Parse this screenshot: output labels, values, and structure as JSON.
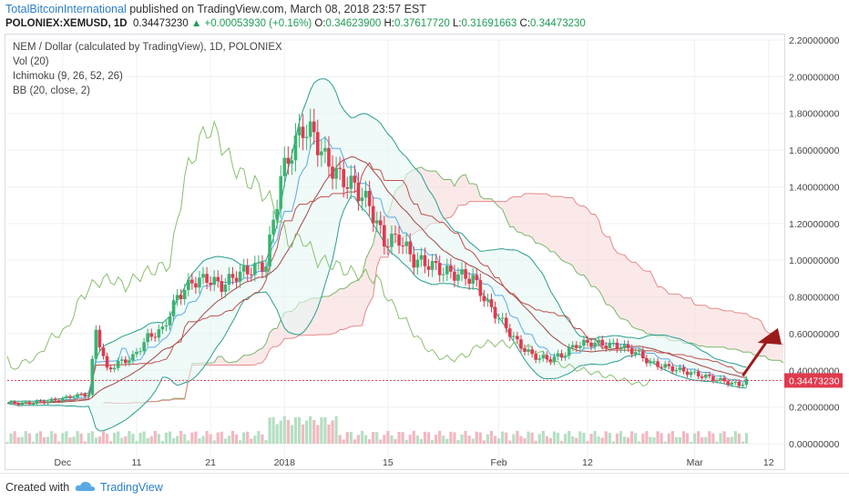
{
  "header": {
    "publisher": "TotalBitcoinInternational",
    "published_text": "published on TradingView.com, March 08, 2018 23:57 EST",
    "symbol": "POLONIEX:XEMUSD, 1D",
    "last": "0.34473230",
    "change": "+0.00053930 (+0.16%)",
    "o_label": "O:",
    "o": "0.34623900",
    "h_label": "H:",
    "h": "0.37617720",
    "l_label": "L:",
    "l": "0.31691663",
    "c_label": "C:",
    "c": "0.34473230"
  },
  "legend": {
    "line1": "NEM / Dollar (calculated by TradingView), 1D, POLONIEX",
    "line2": "Vol (20)",
    "line3": "Ichimoku (9, 26, 52, 26)",
    "line4": "BB (20, close, 2)"
  },
  "footer": {
    "created_with": "Created with",
    "brand": "TradingView"
  },
  "price_tag": "0.34473230",
  "colors": {
    "up": "#3cb371",
    "down": "#e03a4e",
    "bb": "#2a9d8f",
    "senkou_a": "#79b86b",
    "senkou_b": "#e58a8a",
    "kijun": "#a04848",
    "tenkan": "#5aa9e6",
    "arrow": "#9b1b1b"
  },
  "chart_data": {
    "type": "candlestick",
    "yaxis_ticks": [
      "2.20000000",
      "2.00000000",
      "1.80000000",
      "1.60000000",
      "1.40000000",
      "1.20000000",
      "1.00000000",
      "0.80000000",
      "0.60000000",
      "0.40000000",
      "0.20000000",
      "0.00000000"
    ],
    "xaxis_ticks": [
      "Dec",
      "11",
      "21",
      "2018",
      "15",
      "Feb",
      "12",
      "Mar",
      "12"
    ],
    "ylim": [
      0,
      2.2
    ],
    "close_path": [
      [
        0,
        0.22
      ],
      [
        5,
        0.22
      ],
      [
        10,
        0.23
      ],
      [
        14,
        0.24
      ],
      [
        18,
        0.26
      ],
      [
        22,
        0.27
      ],
      [
        24,
        0.62
      ],
      [
        27,
        0.4
      ],
      [
        30,
        0.44
      ],
      [
        34,
        0.47
      ],
      [
        38,
        0.58
      ],
      [
        42,
        0.62
      ],
      [
        46,
        0.8
      ],
      [
        50,
        0.88
      ],
      [
        54,
        0.9
      ],
      [
        58,
        0.86
      ],
      [
        62,
        0.92
      ],
      [
        66,
        0.95
      ],
      [
        70,
        0.98
      ],
      [
        74,
        1.45
      ],
      [
        77,
        1.6
      ],
      [
        80,
        1.72
      ],
      [
        83,
        1.68
      ],
      [
        86,
        1.55
      ],
      [
        90,
        1.45
      ],
      [
        94,
        1.4
      ],
      [
        98,
        1.3
      ],
      [
        102,
        1.1
      ],
      [
        106,
        1.12
      ],
      [
        110,
        1.0
      ],
      [
        114,
        0.98
      ],
      [
        118,
        0.94
      ],
      [
        122,
        0.92
      ],
      [
        126,
        0.9
      ],
      [
        130,
        0.76
      ],
      [
        134,
        0.66
      ],
      [
        138,
        0.55
      ],
      [
        142,
        0.48
      ],
      [
        146,
        0.46
      ],
      [
        150,
        0.48
      ],
      [
        154,
        0.54
      ],
      [
        158,
        0.55
      ],
      [
        162,
        0.54
      ],
      [
        166,
        0.53
      ],
      [
        170,
        0.5
      ],
      [
        174,
        0.44
      ],
      [
        178,
        0.42
      ],
      [
        182,
        0.4
      ],
      [
        186,
        0.38
      ],
      [
        190,
        0.36
      ],
      [
        194,
        0.34
      ],
      [
        198,
        0.32
      ],
      [
        200,
        0.345
      ]
    ],
    "last_price": 0.3447323,
    "x_span_days": 210
  }
}
